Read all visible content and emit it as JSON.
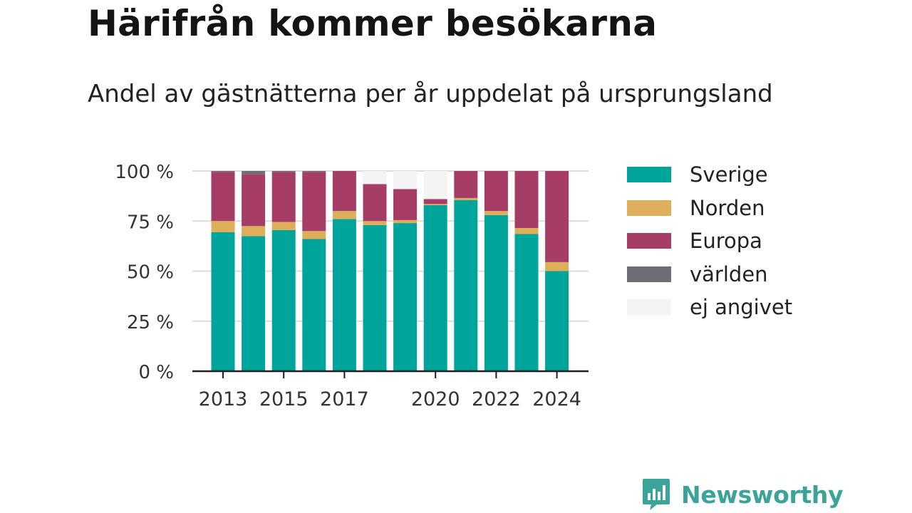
{
  "title": "Härifrån kommer besökarna",
  "subtitle": "Andel av gästnätterna per år uppdelat på ursprungsland",
  "brand": {
    "name": "Newsworthy",
    "icon": "bar-chart-speech-bubble-icon",
    "color": "#3aa39a"
  },
  "chart_data": {
    "type": "bar",
    "stacked": true,
    "categories": [
      "2013",
      "2014",
      "2015",
      "2016",
      "2017",
      "2018",
      "2019",
      "2020",
      "2021",
      "2022",
      "2023",
      "2024"
    ],
    "x_tick_labels": [
      "2013",
      "2015",
      "2017",
      "2020",
      "2022",
      "2024"
    ],
    "y_ticks": [
      0,
      25,
      50,
      75,
      100
    ],
    "y_tick_labels": [
      "0 %",
      "25 %",
      "50 %",
      "75 %",
      "100 %"
    ],
    "ylim": [
      0,
      100
    ],
    "grid": true,
    "legend_position": "right",
    "xlabel": "",
    "ylabel": "",
    "series": [
      {
        "name": "Sverige",
        "color": "#00a49a",
        "values": [
          69.5,
          67.5,
          70.5,
          66.0,
          76.0,
          73.0,
          74.0,
          83.0,
          85.5,
          78.0,
          68.5,
          50.0
        ]
      },
      {
        "name": "Norden",
        "color": "#dfae5a",
        "values": [
          5.5,
          5.0,
          4.0,
          4.0,
          4.0,
          2.0,
          1.5,
          0.5,
          1.0,
          2.0,
          3.0,
          4.5
        ]
      },
      {
        "name": "Europa",
        "color": "#a63d66",
        "values": [
          24.5,
          26.0,
          25.0,
          29.5,
          20.0,
          18.5,
          15.5,
          2.5,
          13.5,
          20.0,
          28.5,
          45.5
        ]
      },
      {
        "name": "världen",
        "color": "#6e6e75",
        "values": [
          0.5,
          1.5,
          0.5,
          0.5,
          0.0,
          0.0,
          0.0,
          0.0,
          0.0,
          0.0,
          0.0,
          0.0
        ]
      },
      {
        "name": "ej angivet",
        "color": "#f4f4f4",
        "values": [
          0.0,
          0.0,
          0.0,
          0.0,
          0.0,
          6.5,
          9.0,
          14.0,
          0.0,
          0.0,
          0.0,
          0.0
        ]
      }
    ]
  }
}
